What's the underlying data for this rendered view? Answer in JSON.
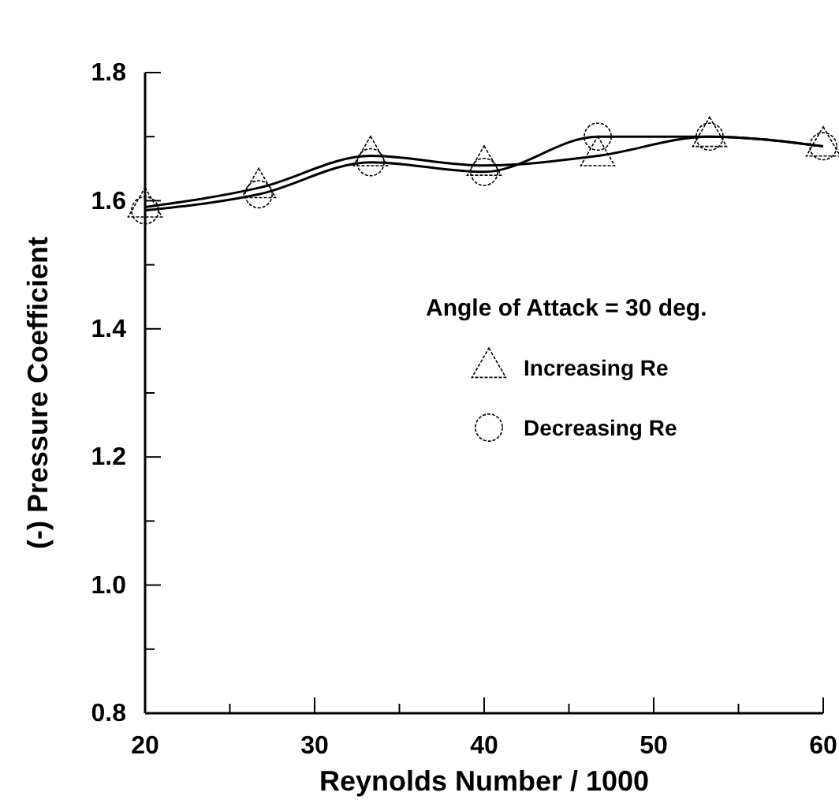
{
  "chart_data": {
    "type": "line",
    "xlabel": "Reynolds Number / 1000",
    "ylabel": "(-) Pressure Coefficient",
    "legend_title": "Angle of Attack = 30 deg.",
    "legend": "right",
    "grid": false,
    "x": [
      20,
      26.7,
      33.3,
      40,
      46.7,
      53.3,
      60
    ],
    "xlim": [
      20,
      60
    ],
    "xticks": [
      20,
      {
        "value": 25,
        "label": null
      },
      30,
      {
        "value": 35,
        "label": null
      },
      40,
      {
        "value": 45,
        "label": null
      },
      50,
      {
        "value": 55,
        "label": null
      },
      60
    ],
    "ylim": [
      0.8,
      1.8
    ],
    "yticks": [
      {
        "value": 0.8,
        "label": "0.8"
      },
      {
        "value": 0.9,
        "label": null
      },
      {
        "value": 1.0,
        "label": "1.0"
      },
      {
        "value": 1.1,
        "label": null
      },
      {
        "value": 1.2,
        "label": "1.2"
      },
      {
        "value": 1.3,
        "label": null
      },
      {
        "value": 1.4,
        "label": "1.4"
      },
      {
        "value": 1.5,
        "label": null
      },
      {
        "value": 1.6,
        "label": "1.6"
      },
      {
        "value": 1.7,
        "label": null
      },
      {
        "value": 1.8,
        "label": "1.8"
      }
    ],
    "series": [
      {
        "name": "Increasing Re",
        "color": "#000000",
        "marker": "triangle",
        "values": [
          1.59,
          1.62,
          1.67,
          1.655,
          1.67,
          1.7,
          1.685
        ]
      },
      {
        "name": "Decreasing Re",
        "color": "#000000",
        "marker": "circle",
        "values": [
          1.585,
          1.61,
          1.66,
          1.645,
          1.7,
          1.7,
          1.685
        ]
      }
    ]
  }
}
